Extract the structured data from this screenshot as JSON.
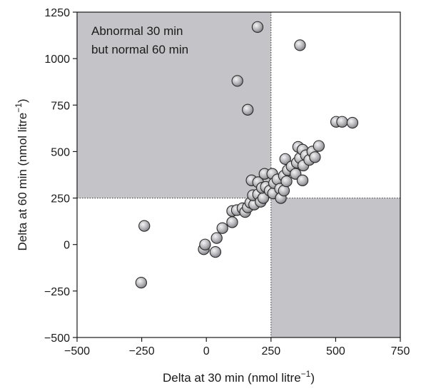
{
  "chart_data": {
    "type": "scatter",
    "xlabel": "Delta at 30 min (nmol litre",
    "xlabel_sup": "−1",
    "xlabel_end": ")",
    "ylabel": "Delta at 60 min (nmol litre",
    "ylabel_sup": "−1",
    "ylabel_end": ")",
    "xlim": [
      -500,
      750
    ],
    "ylim": [
      -500,
      1250
    ],
    "xticks": [
      -500,
      -250,
      0,
      250,
      500,
      750
    ],
    "yticks": [
      -500,
      -250,
      0,
      250,
      500,
      750,
      1000,
      1250
    ],
    "xtick_labels": [
      "−500",
      "−250",
      "0",
      "250",
      "500",
      "750"
    ],
    "ytick_labels": [
      "−500",
      "−250",
      "0",
      "250",
      "500",
      "750",
      "1000",
      "1250"
    ],
    "grid": false,
    "threshold_x": 250,
    "threshold_y": 250,
    "shaded_regions": [
      {
        "x": [
          -500,
          250
        ],
        "y": [
          250,
          1250
        ]
      },
      {
        "x": [
          250,
          750
        ],
        "y": [
          -500,
          250
        ]
      }
    ],
    "annotation_lines": [
      "Abnormal 30 min",
      "but normal 60 min"
    ],
    "colors": {
      "shade": "#c4c4c8",
      "marker_fill": "#b8b8bc",
      "marker_edge": "#2a2a2a"
    },
    "points": [
      {
        "x": 198,
        "y": 1170
      },
      {
        "x": 362,
        "y": 1072
      },
      {
        "x": 120,
        "y": 880
      },
      {
        "x": 160,
        "y": 725
      },
      {
        "x": 502,
        "y": 660
      },
      {
        "x": 525,
        "y": 660
      },
      {
        "x": 565,
        "y": 655
      },
      {
        "x": -240,
        "y": 100
      },
      {
        "x": -252,
        "y": -205
      },
      {
        "x": -10,
        "y": -25
      },
      {
        "x": -5,
        "y": 0
      },
      {
        "x": 35,
        "y": -40
      },
      {
        "x": 40,
        "y": 35
      },
      {
        "x": 62,
        "y": 88
      },
      {
        "x": 100,
        "y": 120
      },
      {
        "x": 100,
        "y": 180
      },
      {
        "x": 118,
        "y": 185
      },
      {
        "x": 140,
        "y": 195
      },
      {
        "x": 150,
        "y": 175
      },
      {
        "x": 160,
        "y": 200
      },
      {
        "x": 170,
        "y": 225
      },
      {
        "x": 185,
        "y": 215
      },
      {
        "x": 180,
        "y": 265
      },
      {
        "x": 200,
        "y": 270
      },
      {
        "x": 210,
        "y": 230
      },
      {
        "x": 220,
        "y": 250
      },
      {
        "x": 175,
        "y": 345
      },
      {
        "x": 200,
        "y": 335
      },
      {
        "x": 215,
        "y": 305
      },
      {
        "x": 225,
        "y": 380
      },
      {
        "x": 230,
        "y": 310
      },
      {
        "x": 245,
        "y": 290
      },
      {
        "x": 258,
        "y": 275
      },
      {
        "x": 255,
        "y": 380
      },
      {
        "x": 262,
        "y": 330
      },
      {
        "x": 275,
        "y": 350
      },
      {
        "x": 285,
        "y": 300
      },
      {
        "x": 288,
        "y": 250
      },
      {
        "x": 300,
        "y": 290
      },
      {
        "x": 300,
        "y": 370
      },
      {
        "x": 310,
        "y": 340
      },
      {
        "x": 305,
        "y": 460
      },
      {
        "x": 315,
        "y": 400
      },
      {
        "x": 330,
        "y": 420
      },
      {
        "x": 345,
        "y": 380
      },
      {
        "x": 350,
        "y": 440
      },
      {
        "x": 355,
        "y": 525
      },
      {
        "x": 362,
        "y": 465
      },
      {
        "x": 372,
        "y": 510
      },
      {
        "x": 375,
        "y": 425
      },
      {
        "x": 372,
        "y": 345
      },
      {
        "x": 385,
        "y": 480
      },
      {
        "x": 398,
        "y": 455
      },
      {
        "x": 410,
        "y": 500
      },
      {
        "x": 420,
        "y": 470
      },
      {
        "x": 435,
        "y": 530
      }
    ]
  }
}
